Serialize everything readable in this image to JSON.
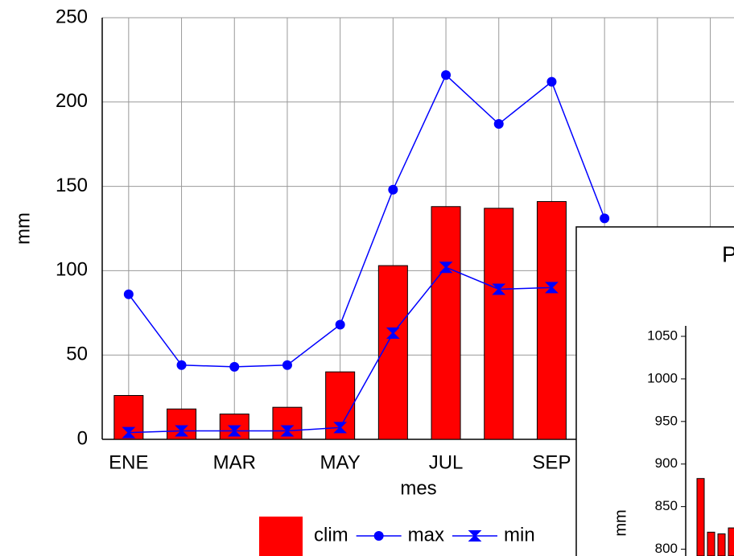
{
  "chart_data": [
    {
      "type": "bar",
      "xlabel": "mes",
      "ylabel": "mm",
      "categories": [
        "ENE",
        null,
        "MAR",
        null,
        "MAY",
        null,
        "JUL",
        null,
        "SEP",
        null,
        null,
        null
      ],
      "series": [
        {
          "name": "clim",
          "type": "bar",
          "color": "#ff0000",
          "values": [
            26,
            18,
            15,
            19,
            40,
            103,
            138,
            137,
            141,
            null,
            null,
            null
          ]
        },
        {
          "name": "max",
          "type": "line",
          "marker": "circle",
          "color": "#0000ff",
          "values": [
            86,
            44,
            43,
            44,
            68,
            148,
            216,
            187,
            212,
            131,
            null,
            null
          ]
        },
        {
          "name": "min",
          "type": "line",
          "marker": "hourglass",
          "color": "#0000ff",
          "values": [
            4,
            5,
            5,
            5,
            7,
            63,
            102,
            89,
            90,
            null,
            null,
            null
          ]
        }
      ],
      "ylim": [
        0,
        250
      ],
      "yticks": [
        0,
        50,
        100,
        150,
        200,
        250
      ],
      "grid": true,
      "legend": "bottom"
    },
    {
      "type": "bar",
      "title": "P",
      "ylabel": "mm",
      "color": "#ff0000",
      "values": [
        883,
        820,
        818,
        825
      ],
      "ylim": [
        792,
        1050
      ],
      "yticks": [
        800,
        850,
        900,
        950,
        1000,
        1050
      ]
    }
  ]
}
